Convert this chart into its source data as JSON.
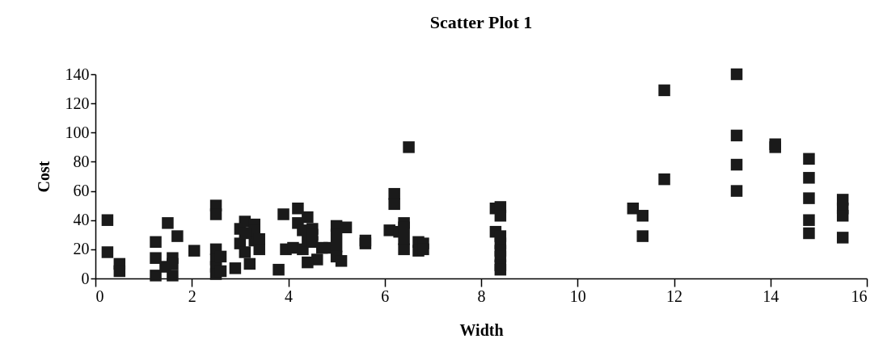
{
  "chart_data": {
    "type": "scatter",
    "title": "Scatter Plot 1",
    "xlabel": "Width",
    "ylabel": "Cost",
    "marker": "square",
    "xlim": [
      0,
      16
    ],
    "xticks": [
      0,
      2,
      4,
      6,
      8,
      10,
      12,
      14,
      16
    ],
    "ylim": [
      0,
      140
    ],
    "yticks": [
      0,
      20,
      40,
      60,
      80,
      100,
      120,
      140
    ],
    "x": [
      0.25,
      0.25,
      0.5,
      0.5,
      1.25,
      1.25,
      1.25,
      1.45,
      1.5,
      1.6,
      1.6,
      1.6,
      1.7,
      2.05,
      2.5,
      2.5,
      2.5,
      2.5,
      2.5,
      2.5,
      2.6,
      2.6,
      2.9,
      3.0,
      3.0,
      3.1,
      3.1,
      3.2,
      3.3,
      3.3,
      3.3,
      3.4,
      3.1,
      3.4,
      3.9,
      3.8,
      3.95,
      4.1,
      4.2,
      4.2,
      4.3,
      4.3,
      4.4,
      4.4,
      4.5,
      4.5,
      4.5,
      4.6,
      4.4,
      4.7,
      4.85,
      5.0,
      5.0,
      5.0,
      5.0,
      5.1,
      5.2,
      5.6,
      5.6,
      6.5,
      6.2,
      6.2,
      6.1,
      6.3,
      6.4,
      6.4,
      6.4,
      6.4,
      6.7,
      6.7,
      6.8,
      6.8,
      8.3,
      8.4,
      8.4,
      8.3,
      8.4,
      8.4,
      8.4,
      8.4,
      8.4,
      8.4,
      11.15,
      11.35,
      11.35,
      11.8,
      11.8,
      13.3,
      13.3,
      13.3,
      13.3,
      14.1,
      14.1,
      14.8,
      14.8,
      14.8,
      14.8,
      14.8,
      15.5,
      15.5,
      15.5,
      15.5
    ],
    "series": [
      {
        "color": "#1a1a1a",
        "values": [
          40,
          18,
          10,
          5,
          25,
          14,
          2,
          8,
          38,
          14,
          10,
          2,
          29,
          19,
          50,
          44,
          20,
          13,
          8,
          3,
          15,
          5,
          7,
          34,
          24,
          39,
          18,
          10,
          37,
          26,
          33,
          20,
          31,
          27,
          44,
          6,
          20,
          21,
          48,
          38,
          33,
          20,
          42,
          26,
          34,
          30,
          25,
          13,
          11,
          21,
          21,
          36,
          30,
          22,
          15,
          12,
          35,
          24,
          26,
          90,
          58,
          51,
          33,
          32,
          38,
          35,
          20,
          27,
          25,
          19,
          24,
          20,
          48,
          49,
          43,
          32,
          29,
          24,
          19,
          15,
          9,
          6,
          48,
          43,
          29,
          129,
          68,
          140,
          98,
          78,
          60,
          92,
          90,
          82,
          69,
          55,
          40,
          31,
          54,
          48,
          43,
          28
        ]
      }
    ]
  }
}
